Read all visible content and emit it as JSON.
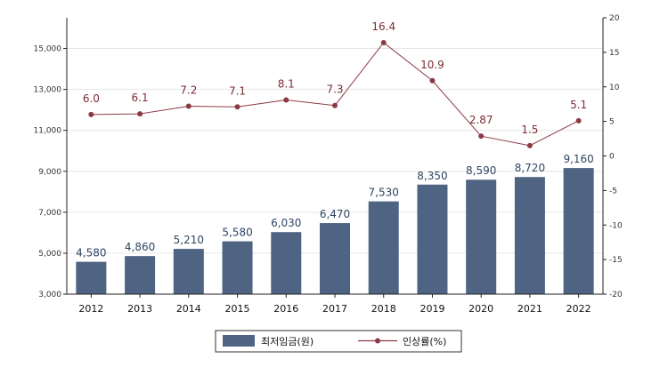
{
  "chart_data": {
    "type": "bar",
    "categories": [
      "2012",
      "2013",
      "2014",
      "2015",
      "2016",
      "2017",
      "2018",
      "2019",
      "2020",
      "2021",
      "2022"
    ],
    "series": [
      {
        "name": "최저임금(원)",
        "type": "bar",
        "axis": "left",
        "values": [
          4580,
          4860,
          5210,
          5580,
          6030,
          6470,
          7530,
          8350,
          8590,
          8720,
          9160
        ],
        "labels": [
          "4,580",
          "4,860",
          "5,210",
          "5,580",
          "6,030",
          "6,470",
          "7,530",
          "8,350",
          "8,590",
          "8,720",
          "9,160"
        ]
      },
      {
        "name": "인상률(%)",
        "type": "line",
        "axis": "right",
        "values": [
          6.0,
          6.1,
          7.2,
          7.1,
          8.1,
          7.3,
          16.4,
          10.9,
          2.87,
          1.5,
          5.1
        ],
        "labels": [
          "6.0",
          "6.1",
          "7.2",
          "7.1",
          "8.1",
          "7.3",
          "16.4",
          "10.9",
          "2.87",
          "1.5",
          "5.1"
        ]
      }
    ],
    "y_left": {
      "range": [
        3000,
        16500
      ],
      "ticks": [
        3000,
        5000,
        7000,
        9000,
        11000,
        13000,
        15000
      ],
      "tick_labels": [
        "3,000",
        "5,000",
        "7,000",
        "9,000",
        "11,000",
        "13,000",
        "15,000"
      ]
    },
    "y_right": {
      "range": [
        -20,
        20
      ],
      "ticks": [
        -20,
        -15,
        -10,
        -5,
        0,
        5,
        10,
        15,
        20
      ],
      "tick_labels": [
        "-20",
        "-15",
        "-10",
        "-5",
        "0",
        "5",
        "10",
        "15",
        "20"
      ]
    },
    "grid": true,
    "legend_position": "bottom",
    "colors": {
      "bar": "#4f6482",
      "line": "#8b3a44",
      "label_bar": "#2e4563",
      "label_line": "#7a2c34"
    }
  },
  "legend": {
    "bar_label": "최저임금(원)",
    "line_label": "인상률(%)"
  }
}
